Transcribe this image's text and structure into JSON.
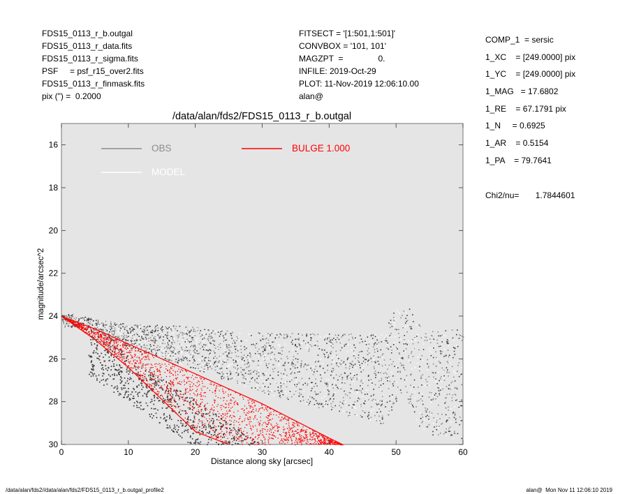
{
  "header_left": [
    "FDS15_0113_r_b.outgal",
    "FDS15_0113_r_data.fits",
    "FDS15_0113_r_sigma.fits",
    "PSF     = psf_r15_over2.fits",
    "FDS15_0113_r_finmask.fits",
    "pix (\") =  0.2000"
  ],
  "header_mid": [
    "FITSECT = '[1:501,1:501]'",
    "CONVBOX = '101, 101'",
    "MAGZPT  =               0.",
    "INFILE: 2019-Oct-29",
    "PLOT: 11-Nov-2019 12:06:10.00",
    "alan@"
  ],
  "params": [
    "COMP_1  = sersic",
    "1_XC    = [249.0000] pix",
    "1_YC    = [249.0000] pix",
    "1_MAG   = 17.6802",
    "1_RE    = 67.1791 pix",
    "1_N     = 0.6925",
    "1_AR    = 0.5154",
    "1_PA    = 79.7641"
  ],
  "chi2": "Chi2/nu=       1.7844601",
  "footer_left": "/data/alan/fds2//data/alan/fds2/FDS15_0113_r_b.outgal_profile2",
  "footer_right": "alan@  Mon Nov 11 12:06:10 2019",
  "colors": {
    "plot_bg": "#e5e5e5",
    "obs": "#8c8c8c",
    "model": "#ffffff",
    "bulge": "#ff0000",
    "dark_points": "#3a3a3a"
  },
  "chart_data": {
    "type": "scatter",
    "title": "/data/alan/fds2/FDS15_0113_r_b.outgal",
    "xlabel": "Distance along sky [arcsec]",
    "ylabel": "magnitude/arcsec^2",
    "xlim": [
      0,
      60
    ],
    "ylim": [
      30,
      15
    ],
    "y_inverted": true,
    "xticks": [
      0,
      10,
      20,
      30,
      40,
      50,
      60
    ],
    "yticks": [
      16,
      18,
      20,
      22,
      24,
      26,
      28,
      30
    ],
    "grid": false,
    "legend": [
      {
        "name": "OBS",
        "color": "#8c8c8c"
      },
      {
        "name": "MODEL",
        "color": "#ffffff"
      },
      {
        "name": "BULGE  1.000",
        "color": "#ff0000"
      }
    ],
    "series": [
      {
        "name": "OBS",
        "note": "scattered points",
        "x": [
          0.5,
          2,
          4,
          6,
          8,
          10,
          12,
          15,
          18,
          20,
          24,
          28,
          32,
          36,
          40,
          44,
          48,
          51,
          54,
          58,
          60
        ],
        "y": [
          24.0,
          24.1,
          24.2,
          24.4,
          24.5,
          24.6,
          24.7,
          24.8,
          24.9,
          25.0,
          25.2,
          25.4,
          25.5,
          25.6,
          25.7,
          25.8,
          25.8,
          24.1,
          25.9,
          25.9,
          25.9
        ]
      },
      {
        "name": "BULGE  1.000",
        "note": "model band, upper and lower envelopes",
        "x": [
          0,
          5,
          10,
          15,
          20,
          25,
          30,
          35,
          40,
          42
        ],
        "y_upper": [
          24.0,
          24.6,
          25.3,
          26.0,
          26.7,
          27.4,
          28.1,
          28.9,
          29.7,
          30.0
        ],
        "y_lower": [
          24.0,
          25.1,
          26.4,
          27.9,
          29.4,
          30.0,
          null,
          null,
          null,
          null
        ]
      }
    ]
  }
}
